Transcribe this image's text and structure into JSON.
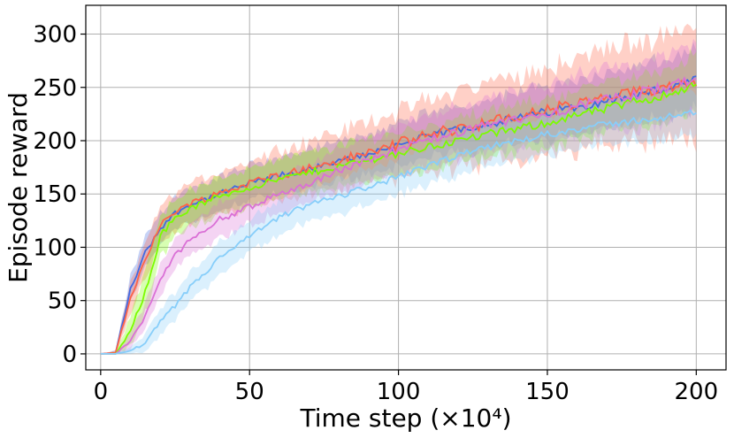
{
  "chart_data": {
    "type": "line",
    "title": "",
    "xlabel": "Time step (×10⁴)",
    "ylabel": "Episode reward",
    "xlim": [
      -5,
      210
    ],
    "ylim": [
      -15,
      327
    ],
    "xticks": [
      0,
      50,
      100,
      150,
      200
    ],
    "yticks": [
      0,
      50,
      100,
      150,
      200,
      250,
      300
    ],
    "grid": true,
    "shaded_band": true,
    "legend": "none",
    "x": [
      0,
      5,
      10,
      15,
      20,
      25,
      30,
      40,
      50,
      60,
      70,
      80,
      90,
      100,
      110,
      120,
      130,
      140,
      150,
      160,
      170,
      180,
      190,
      200
    ],
    "series": [
      {
        "color": "#4169e1",
        "mean": [
          0,
          1,
          60,
          95,
          118,
          132,
          140,
          150,
          160,
          167,
          173,
          180,
          188,
          196,
          204,
          211,
          216,
          221,
          227,
          232,
          238,
          243,
          249,
          256
        ],
        "spread": [
          0,
          2,
          12,
          14,
          15,
          15,
          15,
          16,
          17,
          17,
          18,
          18,
          19,
          20,
          21,
          22,
          23,
          24,
          25,
          25,
          26,
          26,
          27,
          28
        ]
      },
      {
        "color": "#ff6347",
        "mean": [
          0,
          1,
          52,
          90,
          120,
          134,
          141,
          151,
          160,
          168,
          174,
          181,
          189,
          197,
          205,
          212,
          217,
          222,
          229,
          234,
          240,
          245,
          251,
          257
        ],
        "spread": [
          0,
          2,
          14,
          16,
          17,
          18,
          18,
          20,
          22,
          24,
          25,
          27,
          29,
          31,
          33,
          35,
          37,
          39,
          41,
          43,
          45,
          47,
          49,
          52
        ]
      },
      {
        "color": "#7cfc00",
        "mean": [
          0,
          0,
          20,
          60,
          110,
          128,
          136,
          148,
          156,
          164,
          170,
          176,
          182,
          188,
          194,
          200,
          206,
          211,
          217,
          224,
          230,
          237,
          243,
          254
        ],
        "spread": [
          0,
          1,
          14,
          22,
          20,
          18,
          17,
          17,
          18,
          18,
          19,
          19,
          20,
          20,
          21,
          21,
          22,
          22,
          23,
          23,
          24,
          24,
          25,
          26
        ]
      },
      {
        "color": "#da70d6",
        "mean": [
          0,
          0,
          12,
          35,
          70,
          92,
          108,
          126,
          138,
          150,
          160,
          172,
          182,
          192,
          200,
          208,
          214,
          220,
          226,
          232,
          238,
          244,
          250,
          258
        ],
        "spread": [
          0,
          1,
          8,
          12,
          14,
          14,
          15,
          16,
          17,
          18,
          19,
          20,
          21,
          22,
          23,
          24,
          25,
          26,
          27,
          28,
          29,
          30,
          31,
          32
        ]
      },
      {
        "color": "#87cefa",
        "mean": [
          0,
          0,
          3,
          10,
          30,
          45,
          62,
          90,
          110,
          128,
          140,
          148,
          157,
          166,
          176,
          186,
          194,
          200,
          206,
          211,
          215,
          219,
          222,
          226
        ],
        "spread": [
          0,
          1,
          3,
          8,
          12,
          13,
          14,
          15,
          15,
          16,
          16,
          16,
          17,
          17,
          17,
          18,
          18,
          18,
          19,
          19,
          19,
          20,
          20,
          20
        ]
      }
    ]
  }
}
